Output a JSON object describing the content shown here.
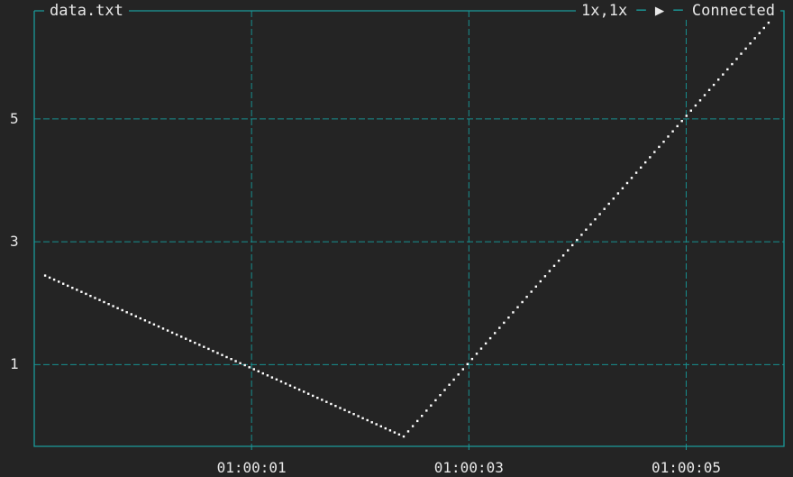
{
  "header": {
    "file_name": "data.txt",
    "zoom": "1x,1x",
    "play_icon": "play-icon",
    "status": "Connected"
  },
  "colors": {
    "background": "#242424",
    "frame": "#1a9a9a",
    "grid": "#178f8f",
    "series": "#ffffff",
    "text": "#e8e8e8"
  },
  "chart_data": {
    "type": "scatter",
    "title": "",
    "xlabel": "",
    "ylabel": "",
    "grid": true,
    "x_tick_labels": [
      "01:00:01",
      "01:00:03",
      "01:00:05"
    ],
    "x_tick_values": [
      1,
      3,
      5
    ],
    "y_tick_labels": [
      "1",
      "3",
      "5"
    ],
    "y_tick_values": [
      1,
      3,
      5
    ],
    "xlim": [
      -1,
      5.9
    ],
    "ylim": [
      -0.33,
      6.76
    ],
    "series": [
      {
        "vertices": [
          [
            -0.9,
            2.45
          ],
          [
            2.4,
            -0.17
          ],
          [
            5.8,
            6.65
          ]
        ],
        "step": 0.042
      }
    ]
  }
}
